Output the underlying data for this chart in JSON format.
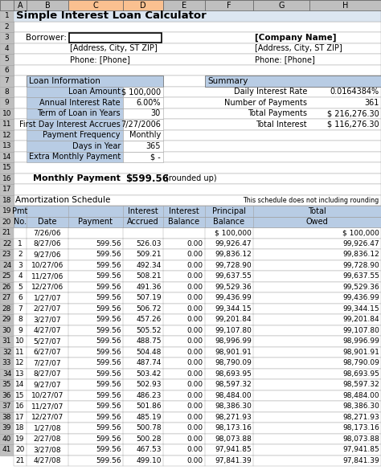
{
  "title": "Simple Interest Loan Calculator",
  "borrower_label": "Borrower:",
  "company_name": "[Company Name]",
  "address1": "[Address, City, ST ZIP]",
  "phone": "Phone: [Phone]",
  "loan_info_label": "Loan Information",
  "summary_label": "Summary",
  "loan_fields": [
    [
      "Loan Amount",
      "$ 100,000"
    ],
    [
      "Annual Interest Rate",
      "6.00%"
    ],
    [
      "Term of Loan in Years",
      "30"
    ],
    [
      "First Day Interest Accrues",
      "7/27/2006"
    ],
    [
      "Payment Frequency",
      "Monthly"
    ],
    [
      "Days in Year",
      "365"
    ],
    [
      "Extra Monthly Payment",
      "$ -"
    ]
  ],
  "summary_fields": [
    [
      "Daily Interest Rate",
      "0.0164384%"
    ],
    [
      "Number of Payments",
      "361"
    ],
    [
      "Total Payments",
      "$ 216,276.30"
    ],
    [
      "Total Interest",
      "$ 116,276.30"
    ]
  ],
  "monthly_payment_label": "Monthly Payment",
  "monthly_payment_value": "$599.56",
  "monthly_payment_note": "(rounded up)",
  "amort_label": "Amortization Schedule",
  "amort_note": "This schedule does not including rounding",
  "col_headers_top": [
    "Pmt",
    "",
    "",
    "Interest",
    "Interest",
    "Principal",
    "Total"
  ],
  "col_headers_bot": [
    "No.",
    "Date",
    "Payment",
    "Accrued",
    "Balance",
    "Balance",
    "Owed"
  ],
  "rows": [
    [
      "",
      "7/26/06",
      "",
      "",
      "",
      "$ 100,000",
      "$ 100,000"
    ],
    [
      "1",
      "8/27/06",
      "599.56",
      "526.03",
      "0.00",
      "99,926.47",
      "99,926.47"
    ],
    [
      "2",
      "9/27/06",
      "599.56",
      "509.21",
      "0.00",
      "99,836.12",
      "99,836.12"
    ],
    [
      "3",
      "10/27/06",
      "599.56",
      "492.34",
      "0.00",
      "99,728.90",
      "99,728.90"
    ],
    [
      "4",
      "11/27/06",
      "599.56",
      "508.21",
      "0.00",
      "99,637.55",
      "99,637.55"
    ],
    [
      "5",
      "12/27/06",
      "599.56",
      "491.36",
      "0.00",
      "99,529.36",
      "99,529.36"
    ],
    [
      "6",
      "1/27/07",
      "599.56",
      "507.19",
      "0.00",
      "99,436.99",
      "99,436.99"
    ],
    [
      "7",
      "2/27/07",
      "599.56",
      "506.72",
      "0.00",
      "99,344.15",
      "99,344.15"
    ],
    [
      "8",
      "3/27/07",
      "599.56",
      "457.26",
      "0.00",
      "99,201.84",
      "99,201.84"
    ],
    [
      "9",
      "4/27/07",
      "599.56",
      "505.52",
      "0.00",
      "99,107.80",
      "99,107.80"
    ],
    [
      "10",
      "5/27/07",
      "599.56",
      "488.75",
      "0.00",
      "98,996.99",
      "98,996.99"
    ],
    [
      "11",
      "6/27/07",
      "599.56",
      "504.48",
      "0.00",
      "98,901.91",
      "98,901.91"
    ],
    [
      "12",
      "7/27/07",
      "599.56",
      "487.74",
      "0.00",
      "98,790.09",
      "98,790.09"
    ],
    [
      "13",
      "8/27/07",
      "599.56",
      "503.42",
      "0.00",
      "98,693.95",
      "98,693.95"
    ],
    [
      "14",
      "9/27/07",
      "599.56",
      "502.93",
      "0.00",
      "98,597.32",
      "98,597.32"
    ],
    [
      "15",
      "10/27/07",
      "599.56",
      "486.23",
      "0.00",
      "98,484.00",
      "98,484.00"
    ],
    [
      "16",
      "11/27/07",
      "599.56",
      "501.86",
      "0.00",
      "98,386.30",
      "98,386.30"
    ],
    [
      "17",
      "12/27/07",
      "599.56",
      "485.19",
      "0.00",
      "98,271.93",
      "98,271.93"
    ],
    [
      "18",
      "1/27/08",
      "599.56",
      "500.78",
      "0.00",
      "98,173.16",
      "98,173.16"
    ],
    [
      "19",
      "2/27/08",
      "599.56",
      "500.28",
      "0.00",
      "98,073.88",
      "98,073.88"
    ],
    [
      "20",
      "3/27/08",
      "599.56",
      "467.53",
      "0.00",
      "97,941.85",
      "97,941.85"
    ],
    [
      "21",
      "4/27/08",
      "599.56",
      "499.10",
      "0.00",
      "97,841.39",
      "97,841.39"
    ]
  ],
  "bg_color": "#ffffff",
  "header_bg": "#bfbfbf",
  "col_header_bg": "#b8cce4",
  "section_header_bg": "#b8cce4",
  "title_bg": "#dce6f1",
  "orange_col_bg": "#fac090",
  "border_color": "#a0a0a0",
  "dark_border": "#606060",
  "input_box_border": "#000000",
  "text_color": "#000000"
}
